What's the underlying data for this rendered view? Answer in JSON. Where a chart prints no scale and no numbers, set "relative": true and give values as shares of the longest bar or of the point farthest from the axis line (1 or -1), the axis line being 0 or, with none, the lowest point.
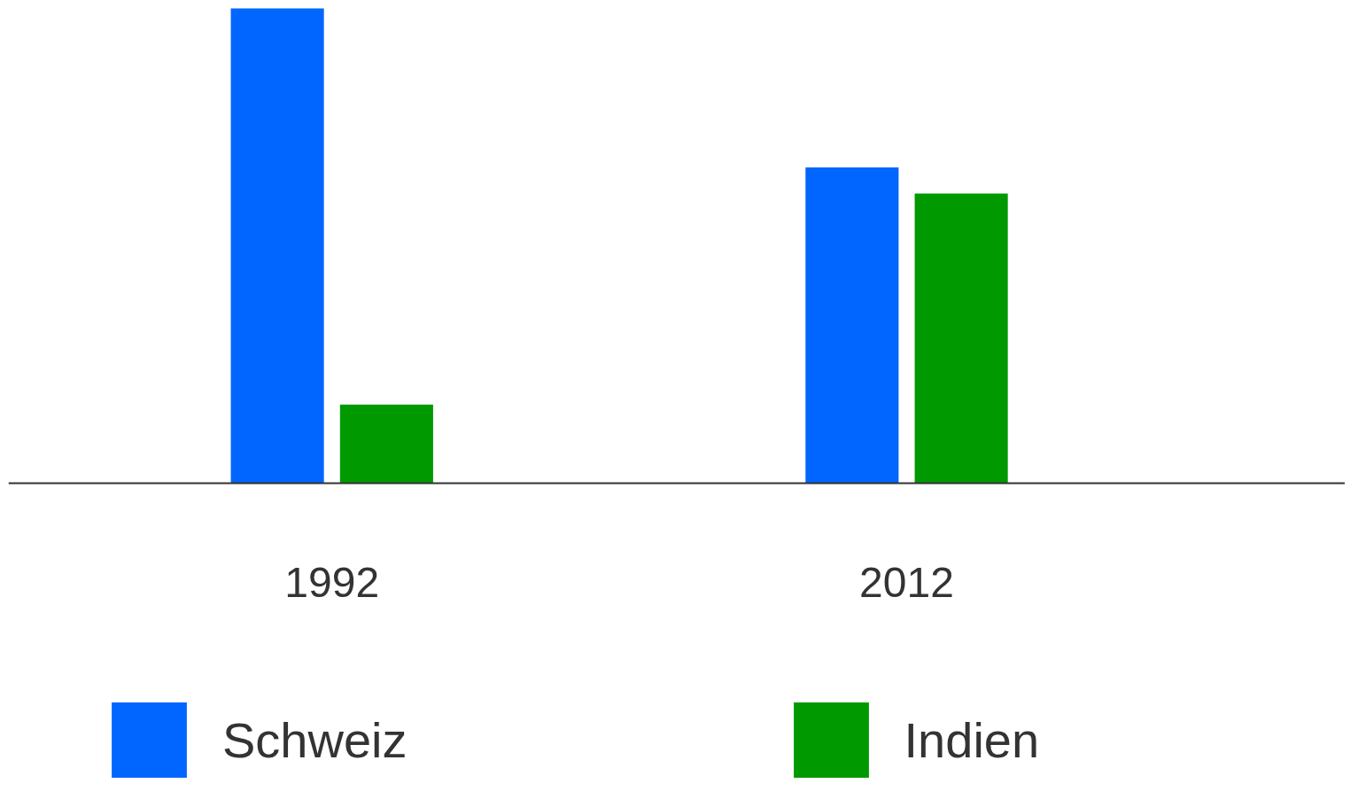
{
  "chart_data": {
    "type": "bar",
    "relative": true,
    "categories": [
      "1992",
      "2012"
    ],
    "series": [
      {
        "name": "Schweiz",
        "color": "#0066ff",
        "values": [
          1,
          0.665
        ]
      },
      {
        "name": "Indien",
        "color": "#009900",
        "values": [
          0.165,
          0.61
        ]
      }
    ],
    "legend": "bottom",
    "grid": false
  }
}
